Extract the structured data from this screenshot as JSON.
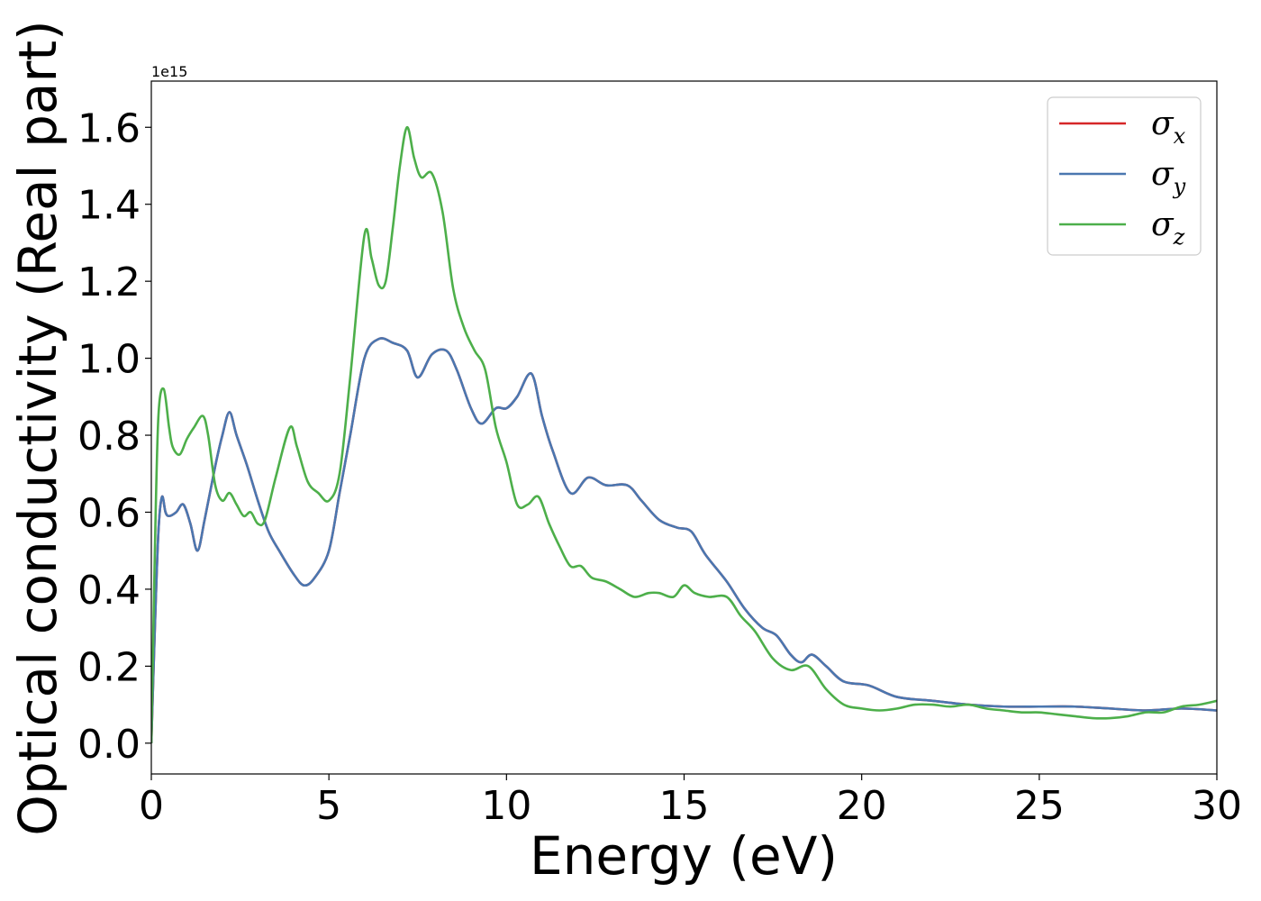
{
  "chart_data": {
    "type": "line",
    "xlabel": "Energy (eV)",
    "ylabel": "Optical conductivity (Real part)",
    "y_offset_label": "1e15",
    "xlim": [
      0,
      30
    ],
    "ylim": [
      -0.08,
      1.72
    ],
    "xticks": [
      0,
      5,
      10,
      15,
      20,
      25,
      30
    ],
    "xtick_labels": [
      "0",
      "5",
      "10",
      "15",
      "20",
      "25",
      "30"
    ],
    "yticks": [
      0.0,
      0.2,
      0.4,
      0.6,
      0.8,
      1.0,
      1.2,
      1.4,
      1.6
    ],
    "ytick_labels": [
      "0.0",
      "0.2",
      "0.4",
      "0.6",
      "0.8",
      "1.0",
      "1.2",
      "1.4",
      "1.6"
    ],
    "grid": false,
    "legend_position": "top-right",
    "series": [
      {
        "name": "σx",
        "legend_base": "σ",
        "legend_sub": "x",
        "color": "#d62728",
        "x": [
          0,
          0.1,
          0.2,
          0.3,
          0.4,
          0.5,
          0.7,
          0.9,
          1.1,
          1.3,
          1.5,
          1.8,
          2.0,
          2.2,
          2.4,
          2.7,
          3.0,
          3.3,
          3.6,
          4.0,
          4.3,
          4.6,
          5.0,
          5.3,
          5.6,
          6.0,
          6.4,
          6.8,
          7.2,
          7.5,
          7.9,
          8.3,
          8.6,
          9.0,
          9.3,
          9.7,
          10.0,
          10.3,
          10.7,
          11.0,
          11.3,
          11.8,
          12.3,
          12.8,
          13.4,
          13.8,
          14.3,
          14.8,
          15.2,
          15.6,
          16.2,
          16.7,
          17.2,
          17.6,
          18.0,
          18.3,
          18.6,
          19.0,
          19.5,
          20.2,
          21.0,
          22.0,
          23.0,
          24.0,
          25.0,
          26.0,
          27.0,
          28.0,
          29.0,
          30.0
        ],
        "y": [
          0.0,
          0.3,
          0.55,
          0.64,
          0.6,
          0.59,
          0.6,
          0.62,
          0.57,
          0.5,
          0.58,
          0.72,
          0.8,
          0.86,
          0.8,
          0.72,
          0.63,
          0.55,
          0.5,
          0.44,
          0.41,
          0.43,
          0.5,
          0.65,
          0.8,
          1.0,
          1.05,
          1.04,
          1.02,
          0.95,
          1.01,
          1.02,
          0.97,
          0.87,
          0.83,
          0.87,
          0.87,
          0.9,
          0.96,
          0.85,
          0.76,
          0.65,
          0.69,
          0.67,
          0.67,
          0.63,
          0.58,
          0.56,
          0.55,
          0.49,
          0.42,
          0.35,
          0.3,
          0.28,
          0.23,
          0.21,
          0.23,
          0.2,
          0.16,
          0.15,
          0.12,
          0.11,
          0.1,
          0.095,
          0.095,
          0.095,
          0.09,
          0.085,
          0.09,
          0.085
        ]
      },
      {
        "name": "σy",
        "legend_base": "σ",
        "legend_sub": "y",
        "color": "#4a77b0",
        "x": [
          0,
          0.1,
          0.2,
          0.3,
          0.4,
          0.5,
          0.7,
          0.9,
          1.1,
          1.3,
          1.5,
          1.8,
          2.0,
          2.2,
          2.4,
          2.7,
          3.0,
          3.3,
          3.6,
          4.0,
          4.3,
          4.6,
          5.0,
          5.3,
          5.6,
          6.0,
          6.4,
          6.8,
          7.2,
          7.5,
          7.9,
          8.3,
          8.6,
          9.0,
          9.3,
          9.7,
          10.0,
          10.3,
          10.7,
          11.0,
          11.3,
          11.8,
          12.3,
          12.8,
          13.4,
          13.8,
          14.3,
          14.8,
          15.2,
          15.6,
          16.2,
          16.7,
          17.2,
          17.6,
          18.0,
          18.3,
          18.6,
          19.0,
          19.5,
          20.2,
          21.0,
          22.0,
          23.0,
          24.0,
          25.0,
          26.0,
          27.0,
          28.0,
          29.0,
          30.0
        ],
        "y": [
          0.0,
          0.3,
          0.55,
          0.64,
          0.6,
          0.59,
          0.6,
          0.62,
          0.57,
          0.5,
          0.58,
          0.72,
          0.8,
          0.86,
          0.8,
          0.72,
          0.63,
          0.55,
          0.5,
          0.44,
          0.41,
          0.43,
          0.5,
          0.65,
          0.8,
          1.0,
          1.05,
          1.04,
          1.02,
          0.95,
          1.01,
          1.02,
          0.97,
          0.87,
          0.83,
          0.87,
          0.87,
          0.9,
          0.96,
          0.85,
          0.76,
          0.65,
          0.69,
          0.67,
          0.67,
          0.63,
          0.58,
          0.56,
          0.55,
          0.49,
          0.42,
          0.35,
          0.3,
          0.28,
          0.23,
          0.21,
          0.23,
          0.2,
          0.16,
          0.15,
          0.12,
          0.11,
          0.1,
          0.095,
          0.095,
          0.095,
          0.09,
          0.085,
          0.09,
          0.085
        ]
      },
      {
        "name": "σz",
        "legend_base": "σ",
        "legend_sub": "z",
        "color": "#4daf4a",
        "x": [
          0,
          0.1,
          0.2,
          0.35,
          0.5,
          0.6,
          0.8,
          1.0,
          1.2,
          1.45,
          1.6,
          1.8,
          2.0,
          2.2,
          2.4,
          2.6,
          2.8,
          3.0,
          3.2,
          3.5,
          3.9,
          4.1,
          4.4,
          4.7,
          5.0,
          5.3,
          5.6,
          6.0,
          6.2,
          6.4,
          6.6,
          6.8,
          7.0,
          7.2,
          7.4,
          7.6,
          7.9,
          8.2,
          8.5,
          8.8,
          9.1,
          9.4,
          9.7,
          10.0,
          10.3,
          10.6,
          10.9,
          11.2,
          11.5,
          11.8,
          12.1,
          12.4,
          12.8,
          13.2,
          13.6,
          14.0,
          14.3,
          14.7,
          15.0,
          15.3,
          15.7,
          16.2,
          16.6,
          17.0,
          17.5,
          18.0,
          18.5,
          19.0,
          19.5,
          20.0,
          20.5,
          21.0,
          21.5,
          22.0,
          22.5,
          23.0,
          23.5,
          24.0,
          24.5,
          25.0,
          25.5,
          26.0,
          26.5,
          27.0,
          27.5,
          28.0,
          28.5,
          29.0,
          29.5,
          30.0
        ],
        "y": [
          0.0,
          0.5,
          0.85,
          0.92,
          0.82,
          0.77,
          0.75,
          0.79,
          0.82,
          0.85,
          0.8,
          0.67,
          0.63,
          0.65,
          0.62,
          0.59,
          0.6,
          0.57,
          0.58,
          0.69,
          0.82,
          0.77,
          0.68,
          0.65,
          0.63,
          0.7,
          0.95,
          1.32,
          1.26,
          1.19,
          1.2,
          1.34,
          1.5,
          1.6,
          1.52,
          1.47,
          1.48,
          1.38,
          1.18,
          1.08,
          1.02,
          0.97,
          0.82,
          0.73,
          0.62,
          0.62,
          0.64,
          0.57,
          0.51,
          0.46,
          0.46,
          0.43,
          0.42,
          0.4,
          0.38,
          0.39,
          0.39,
          0.38,
          0.41,
          0.39,
          0.38,
          0.38,
          0.33,
          0.29,
          0.22,
          0.19,
          0.2,
          0.14,
          0.1,
          0.09,
          0.085,
          0.09,
          0.1,
          0.1,
          0.095,
          0.1,
          0.09,
          0.085,
          0.08,
          0.08,
          0.075,
          0.07,
          0.065,
          0.065,
          0.07,
          0.08,
          0.08,
          0.095,
          0.1,
          0.11
        ]
      }
    ]
  }
}
